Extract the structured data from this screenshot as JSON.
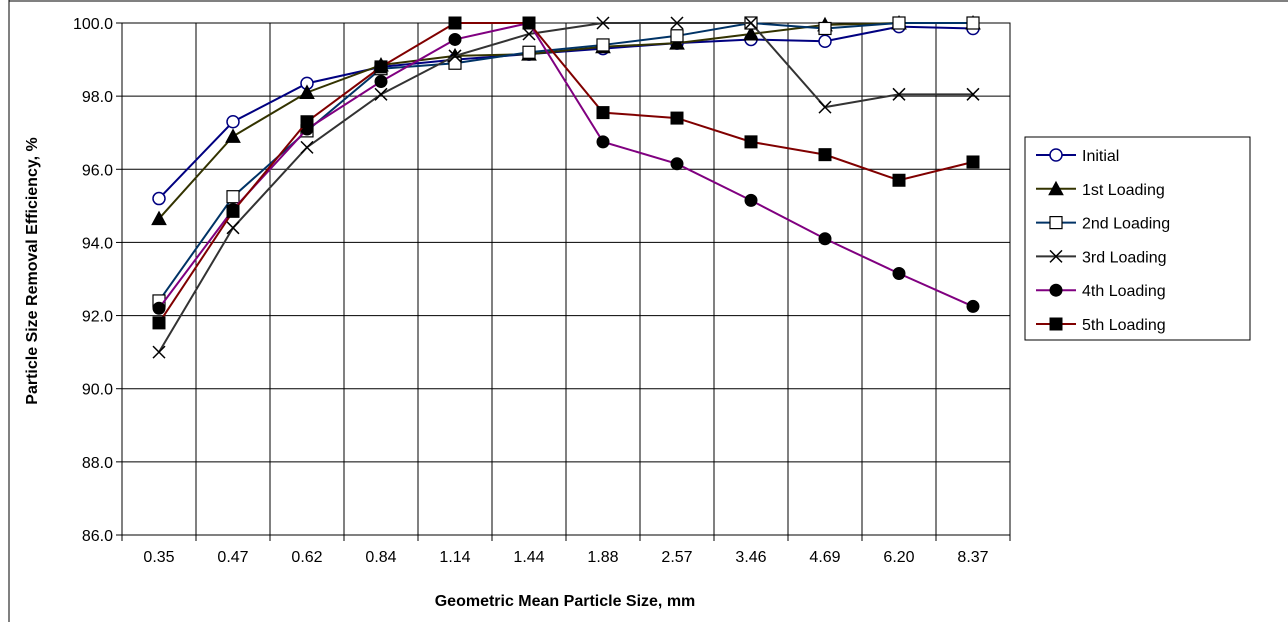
{
  "chart_data": {
    "type": "line",
    "xlabel": "Geometric Mean Particle Size, mm",
    "ylabel": "Particle Size Removal Efficiency, %",
    "categories": [
      "0.35",
      "0.47",
      "0.62",
      "0.84",
      "1.14",
      "1.44",
      "1.88",
      "2.57",
      "3.46",
      "4.69",
      "6.20",
      "8.37"
    ],
    "ylim": [
      86.0,
      100.0
    ],
    "yticks": [
      "86.0",
      "88.0",
      "90.0",
      "92.0",
      "94.0",
      "96.0",
      "98.0",
      "100.0"
    ],
    "grid": true,
    "legend_position": "right",
    "series": [
      {
        "name": "Initial",
        "color": "#000080",
        "marker": "circle-open",
        "values": [
          95.2,
          97.3,
          98.35,
          98.8,
          99.0,
          99.15,
          99.3,
          99.45,
          99.55,
          99.5,
          99.9,
          99.85
        ]
      },
      {
        "name": "1st Loading",
        "color": "#333300",
        "marker": "triangle-filled",
        "values": [
          94.65,
          96.9,
          98.1,
          98.85,
          99.1,
          99.15,
          99.35,
          99.45,
          99.7,
          99.95,
          100.0,
          100.0
        ]
      },
      {
        "name": "2nd Loading",
        "color": "#003366",
        "marker": "square-open",
        "values": [
          92.4,
          95.25,
          97.05,
          98.75,
          98.9,
          99.2,
          99.4,
          99.65,
          100.0,
          99.85,
          100.0,
          100.0
        ]
      },
      {
        "name": "3rd Loading",
        "color": "#333333",
        "marker": "x",
        "values": [
          91.0,
          94.4,
          96.6,
          98.05,
          99.1,
          99.7,
          100.0,
          100.0,
          100.0,
          97.7,
          98.05,
          98.05
        ]
      },
      {
        "name": "4th Loading",
        "color": "#800080",
        "marker": "circle-filled",
        "values": [
          92.2,
          94.9,
          97.1,
          98.4,
          99.55,
          100.0,
          96.75,
          96.15,
          95.15,
          94.1,
          93.15,
          92.25
        ]
      },
      {
        "name": "5th Loading",
        "color": "#800000",
        "marker": "square-filled",
        "values": [
          91.8,
          94.85,
          97.3,
          98.8,
          100.0,
          100.0,
          97.55,
          97.4,
          96.75,
          96.4,
          95.7,
          96.2
        ]
      }
    ]
  }
}
